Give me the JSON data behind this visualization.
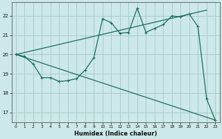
{
  "xlabel": "Humidex (Indice chaleur)",
  "bg_color": "#cce8e8",
  "grid_color": "#aacccc",
  "line_color": "#1a6b5a",
  "xlim": [
    -0.5,
    23.5
  ],
  "ylim": [
    16.5,
    22.7
  ],
  "xticks": [
    0,
    1,
    2,
    3,
    4,
    5,
    6,
    7,
    8,
    9,
    10,
    11,
    12,
    13,
    14,
    15,
    16,
    17,
    18,
    19,
    20,
    21,
    22,
    23
  ],
  "yticks": [
    17,
    18,
    19,
    20,
    21,
    22
  ],
  "line1_x": [
    0,
    1,
    2,
    3,
    4,
    5,
    6,
    7,
    8,
    9,
    10,
    11,
    12,
    13,
    14,
    15,
    16,
    17,
    18,
    19,
    20,
    21,
    22,
    23
  ],
  "line1_y": [
    20.0,
    19.9,
    19.5,
    18.8,
    18.8,
    18.6,
    18.65,
    18.75,
    19.2,
    19.85,
    21.85,
    21.65,
    21.1,
    21.15,
    22.4,
    21.15,
    21.35,
    21.55,
    22.0,
    21.95,
    22.1,
    21.45,
    17.7,
    16.6
  ],
  "line2_x": [
    0,
    22
  ],
  "line2_y": [
    20.0,
    22.3
  ],
  "line3_x": [
    0,
    23
  ],
  "line3_y": [
    20.0,
    16.6
  ]
}
